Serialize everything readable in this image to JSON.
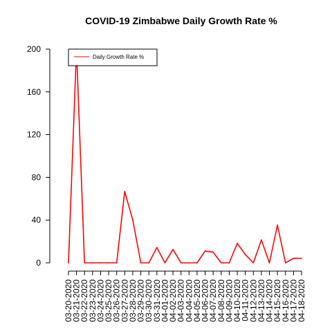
{
  "chart_data": {
    "type": "line",
    "title": "COVID-19 Zimbabwe Daily Growth Rate %",
    "xlabel": "",
    "ylabel": "",
    "categories": [
      "03-20-2020",
      "03-21-2020",
      "03-22-2020",
      "03-23-2020",
      "03-24-2020",
      "03-25-2020",
      "03-26-2020",
      "03-27-2020",
      "03-28-2020",
      "03-29-2020",
      "03-30-2020",
      "03-31-2020",
      "04-01-2020",
      "04-02-2020",
      "04-03-2020",
      "04-04-2020",
      "04-05-2020",
      "04-06-2020",
      "04-07-2020",
      "04-08-2020",
      "04-09-2020",
      "04-10-2020",
      "04-11-2020",
      "04-12-2020",
      "04-13-2020",
      "04-14-2020",
      "04-15-2020",
      "04-16-2020",
      "04-17-2020",
      "04-18-2020"
    ],
    "series": [
      {
        "name": "Daily Growth Rate %",
        "color": "#ff0000",
        "values": [
          0,
          200,
          0,
          0,
          0,
          0,
          0,
          66.7,
          40,
          0,
          0,
          14.3,
          0,
          12.5,
          0,
          0,
          0,
          11.1,
          10,
          0,
          0,
          18.2,
          7.7,
          0,
          21.4,
          0,
          35.3,
          0,
          4.3,
          4.2
        ]
      }
    ],
    "ylim": [
      0,
      200
    ],
    "yticks": [
      "0",
      "40",
      "80",
      "120",
      "160",
      "200"
    ],
    "grid": false,
    "legend_position": "top-left"
  }
}
